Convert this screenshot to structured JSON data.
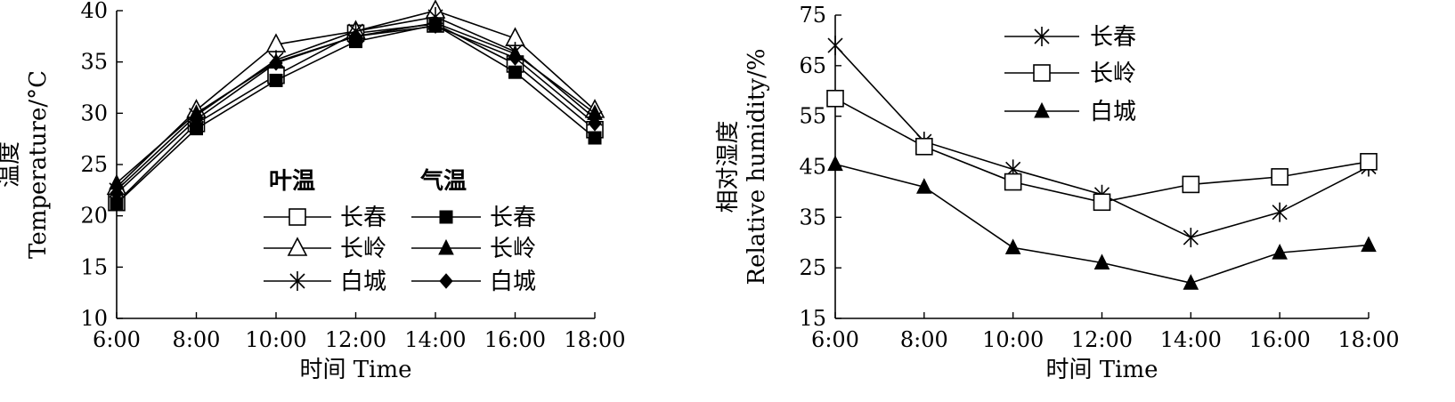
{
  "chart_data": [
    {
      "type": "line",
      "xlabel": "时间 Time",
      "ylabel_cn": "温度",
      "ylabel_en": "Temperature/°C",
      "categories": [
        "6:00",
        "8:00",
        "10:00",
        "12:00",
        "14:00",
        "16:00",
        "18:00"
      ],
      "ylim": [
        10,
        40
      ],
      "yticks": [
        "10",
        "15",
        "20",
        "25",
        "30",
        "35",
        "40"
      ],
      "grid": false,
      "legend": {
        "position": "center",
        "group_headers": [
          "叶温",
          "气温"
        ]
      },
      "series": [
        {
          "group": "叶温",
          "name": "长春",
          "marker": "square-open",
          "values": [
            21.3,
            29.0,
            33.7,
            37.8,
            38.7,
            34.8,
            28.4
          ]
        },
        {
          "group": "叶温",
          "name": "长岭",
          "marker": "triangle-open",
          "values": [
            22.8,
            30.3,
            36.7,
            38.0,
            40.0,
            37.3,
            30.3
          ]
        },
        {
          "group": "叶温",
          "name": "白城",
          "marker": "asterisk",
          "values": [
            22.5,
            29.8,
            35.2,
            38.0,
            39.4,
            36.0,
            29.5
          ]
        },
        {
          "group": "气温",
          "name": "长春",
          "marker": "square-filled",
          "values": [
            21.2,
            28.5,
            33.2,
            37.0,
            38.6,
            34.0,
            27.6
          ]
        },
        {
          "group": "气温",
          "name": "长岭",
          "marker": "triangle-filled",
          "values": [
            23.2,
            30.0,
            35.0,
            37.5,
            38.8,
            35.8,
            30.0
          ]
        },
        {
          "group": "气温",
          "name": "白城",
          "marker": "diamond-filled",
          "values": [
            22.2,
            29.4,
            34.9,
            37.5,
            38.5,
            35.4,
            29.0
          ]
        }
      ]
    },
    {
      "type": "line",
      "xlabel": "时间 Time",
      "ylabel_cn": "相对湿度",
      "ylabel_en": "Relative humidity/%",
      "categories": [
        "6:00",
        "8:00",
        "10:00",
        "12:00",
        "14:00",
        "16:00",
        "18:00"
      ],
      "ylim": [
        15,
        75
      ],
      "yticks": [
        "15",
        "25",
        "35",
        "45",
        "55",
        "65",
        "75"
      ],
      "grid": false,
      "legend": {
        "position": "top-left"
      },
      "series": [
        {
          "name": "长春",
          "marker": "asterisk",
          "values": [
            69.0,
            50.0,
            44.5,
            39.5,
            31.0,
            36.0,
            45.0
          ]
        },
        {
          "name": "长岭",
          "marker": "square-open",
          "values": [
            58.5,
            49.0,
            42.0,
            38.0,
            41.5,
            43.0,
            46.0
          ]
        },
        {
          "name": "白城",
          "marker": "triangle-filled",
          "values": [
            45.5,
            41.0,
            29.0,
            26.0,
            22.0,
            28.0,
            29.5
          ]
        }
      ]
    }
  ]
}
